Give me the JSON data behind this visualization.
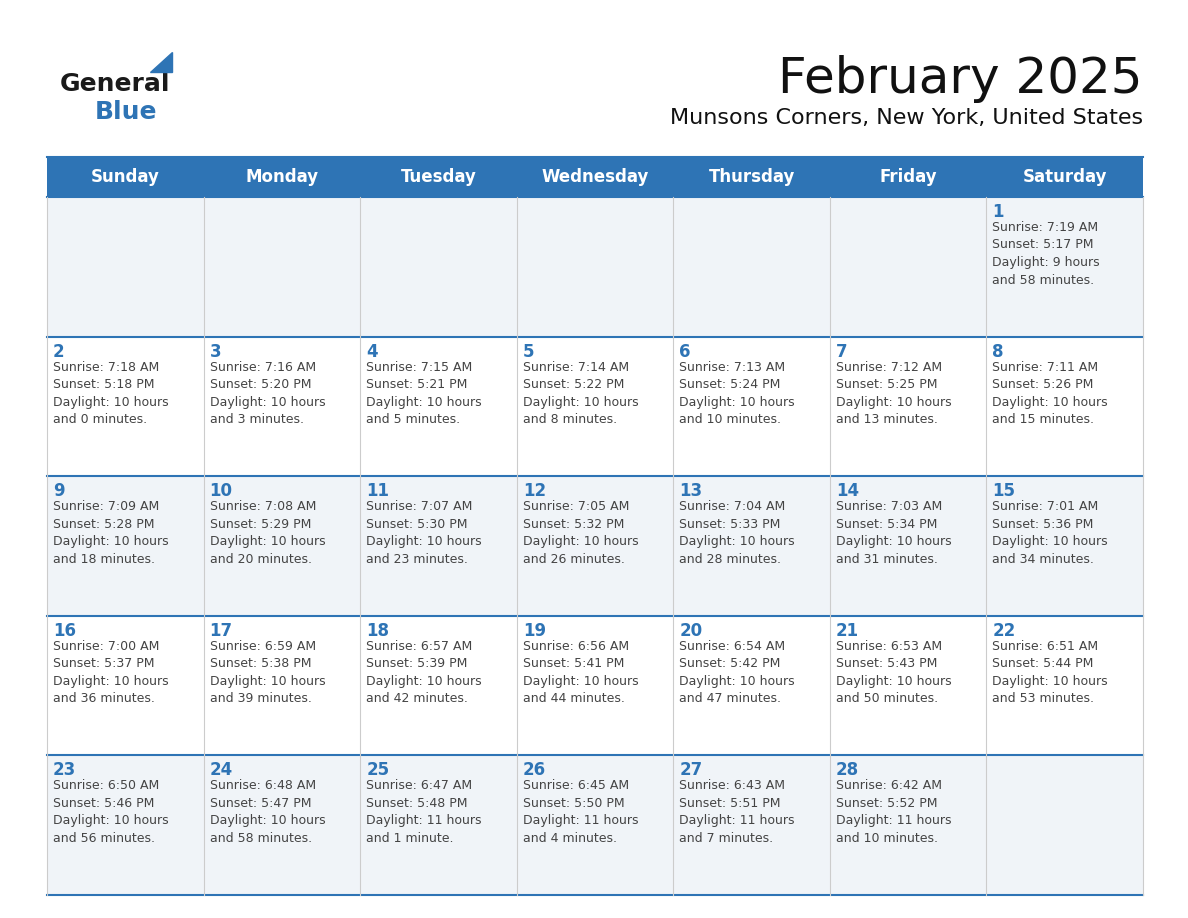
{
  "title": "February 2025",
  "subtitle": "Munsons Corners, New York, United States",
  "header_bg": "#2E74B5",
  "header_text_color": "#FFFFFF",
  "border_color": "#2E74B5",
  "day_number_color": "#2E74B5",
  "cell_text_color": "#444444",
  "cell_bg_even": "#F0F4F8",
  "cell_bg_odd": "#FFFFFF",
  "days_of_week": [
    "Sunday",
    "Monday",
    "Tuesday",
    "Wednesday",
    "Thursday",
    "Friday",
    "Saturday"
  ],
  "weeks": [
    [
      {
        "day": null,
        "info": null
      },
      {
        "day": null,
        "info": null
      },
      {
        "day": null,
        "info": null
      },
      {
        "day": null,
        "info": null
      },
      {
        "day": null,
        "info": null
      },
      {
        "day": null,
        "info": null
      },
      {
        "day": 1,
        "info": "Sunrise: 7:19 AM\nSunset: 5:17 PM\nDaylight: 9 hours\nand 58 minutes."
      }
    ],
    [
      {
        "day": 2,
        "info": "Sunrise: 7:18 AM\nSunset: 5:18 PM\nDaylight: 10 hours\nand 0 minutes."
      },
      {
        "day": 3,
        "info": "Sunrise: 7:16 AM\nSunset: 5:20 PM\nDaylight: 10 hours\nand 3 minutes."
      },
      {
        "day": 4,
        "info": "Sunrise: 7:15 AM\nSunset: 5:21 PM\nDaylight: 10 hours\nand 5 minutes."
      },
      {
        "day": 5,
        "info": "Sunrise: 7:14 AM\nSunset: 5:22 PM\nDaylight: 10 hours\nand 8 minutes."
      },
      {
        "day": 6,
        "info": "Sunrise: 7:13 AM\nSunset: 5:24 PM\nDaylight: 10 hours\nand 10 minutes."
      },
      {
        "day": 7,
        "info": "Sunrise: 7:12 AM\nSunset: 5:25 PM\nDaylight: 10 hours\nand 13 minutes."
      },
      {
        "day": 8,
        "info": "Sunrise: 7:11 AM\nSunset: 5:26 PM\nDaylight: 10 hours\nand 15 minutes."
      }
    ],
    [
      {
        "day": 9,
        "info": "Sunrise: 7:09 AM\nSunset: 5:28 PM\nDaylight: 10 hours\nand 18 minutes."
      },
      {
        "day": 10,
        "info": "Sunrise: 7:08 AM\nSunset: 5:29 PM\nDaylight: 10 hours\nand 20 minutes."
      },
      {
        "day": 11,
        "info": "Sunrise: 7:07 AM\nSunset: 5:30 PM\nDaylight: 10 hours\nand 23 minutes."
      },
      {
        "day": 12,
        "info": "Sunrise: 7:05 AM\nSunset: 5:32 PM\nDaylight: 10 hours\nand 26 minutes."
      },
      {
        "day": 13,
        "info": "Sunrise: 7:04 AM\nSunset: 5:33 PM\nDaylight: 10 hours\nand 28 minutes."
      },
      {
        "day": 14,
        "info": "Sunrise: 7:03 AM\nSunset: 5:34 PM\nDaylight: 10 hours\nand 31 minutes."
      },
      {
        "day": 15,
        "info": "Sunrise: 7:01 AM\nSunset: 5:36 PM\nDaylight: 10 hours\nand 34 minutes."
      }
    ],
    [
      {
        "day": 16,
        "info": "Sunrise: 7:00 AM\nSunset: 5:37 PM\nDaylight: 10 hours\nand 36 minutes."
      },
      {
        "day": 17,
        "info": "Sunrise: 6:59 AM\nSunset: 5:38 PM\nDaylight: 10 hours\nand 39 minutes."
      },
      {
        "day": 18,
        "info": "Sunrise: 6:57 AM\nSunset: 5:39 PM\nDaylight: 10 hours\nand 42 minutes."
      },
      {
        "day": 19,
        "info": "Sunrise: 6:56 AM\nSunset: 5:41 PM\nDaylight: 10 hours\nand 44 minutes."
      },
      {
        "day": 20,
        "info": "Sunrise: 6:54 AM\nSunset: 5:42 PM\nDaylight: 10 hours\nand 47 minutes."
      },
      {
        "day": 21,
        "info": "Sunrise: 6:53 AM\nSunset: 5:43 PM\nDaylight: 10 hours\nand 50 minutes."
      },
      {
        "day": 22,
        "info": "Sunrise: 6:51 AM\nSunset: 5:44 PM\nDaylight: 10 hours\nand 53 minutes."
      }
    ],
    [
      {
        "day": 23,
        "info": "Sunrise: 6:50 AM\nSunset: 5:46 PM\nDaylight: 10 hours\nand 56 minutes."
      },
      {
        "day": 24,
        "info": "Sunrise: 6:48 AM\nSunset: 5:47 PM\nDaylight: 10 hours\nand 58 minutes."
      },
      {
        "day": 25,
        "info": "Sunrise: 6:47 AM\nSunset: 5:48 PM\nDaylight: 11 hours\nand 1 minute."
      },
      {
        "day": 26,
        "info": "Sunrise: 6:45 AM\nSunset: 5:50 PM\nDaylight: 11 hours\nand 4 minutes."
      },
      {
        "day": 27,
        "info": "Sunrise: 6:43 AM\nSunset: 5:51 PM\nDaylight: 11 hours\nand 7 minutes."
      },
      {
        "day": 28,
        "info": "Sunrise: 6:42 AM\nSunset: 5:52 PM\nDaylight: 11 hours\nand 10 minutes."
      },
      {
        "day": null,
        "info": null
      }
    ]
  ],
  "logo_general_color": "#1a1a1a",
  "logo_blue_color": "#2E74B5",
  "logo_triangle_color": "#2E74B5",
  "title_fontsize": 36,
  "subtitle_fontsize": 16,
  "dow_fontsize": 12,
  "day_num_fontsize": 12,
  "cell_info_fontsize": 9
}
